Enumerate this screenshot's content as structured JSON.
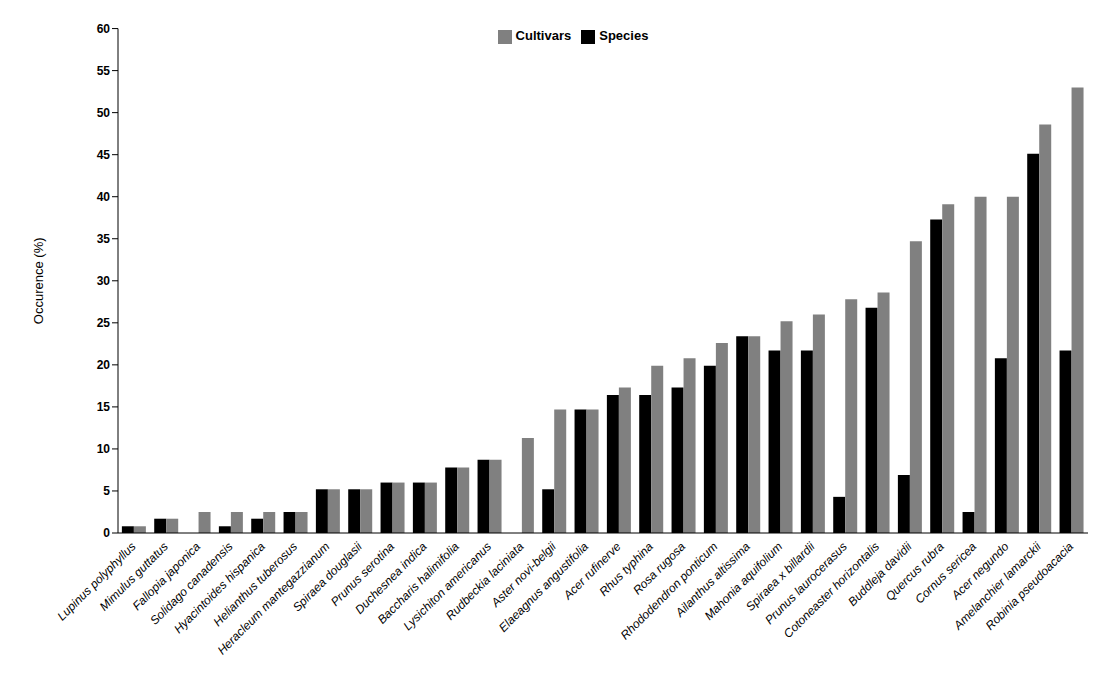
{
  "chart_data": {
    "type": "bar",
    "y_label": "Occurence (%)",
    "categories": [
      "Lupinus polyphyllus",
      "Mimulus guttatus",
      "Fallopia japonica",
      "Solidago canadensis",
      "Hyacintoides hispanica",
      "Helianthus tuberosus",
      "Heracleum mantegazzianum",
      "Spiraea douglasii",
      "Prunus serotina",
      "Duchesnea indica",
      "Baccharis halimifolia",
      "Lysichiton americanus",
      "Rudbeckia laciniata",
      "Aster novi-belgii",
      "Elaeagnus angustifolia",
      "Acer rufinerve",
      "Rhus typhina",
      "Rosa rugosa",
      "Rhododendron ponticum",
      "Ailanthus altissima",
      "Mahonia aquifolium",
      "Spiraea x billardii",
      "Prunus laurocerasus",
      "Cotoneaster horizontalis",
      "Buddleja davidii",
      "Quercus rubra",
      "Cornus sericea",
      "Acer negundo",
      "Amelanchier lamarckii",
      "Robinia pseudoacacia"
    ],
    "series": [
      {
        "name": "Species",
        "color": "#000000",
        "values": [
          0.8,
          1.7,
          0,
          0.8,
          1.7,
          2.5,
          5.2,
          5.2,
          6.0,
          6.0,
          7.8,
          8.7,
          0,
          5.2,
          14.7,
          16.4,
          16.4,
          17.3,
          19.9,
          23.4,
          21.7,
          21.7,
          4.3,
          26.8,
          6.9,
          37.3,
          2.5,
          20.8,
          45.1,
          21.7
        ]
      },
      {
        "name": "Cultivars",
        "color": "#808080",
        "values": [
          0.8,
          1.7,
          2.5,
          2.5,
          2.5,
          2.5,
          5.2,
          5.2,
          6.0,
          6.0,
          7.8,
          8.7,
          11.3,
          14.7,
          14.7,
          17.3,
          19.9,
          20.8,
          22.6,
          23.4,
          25.2,
          26.0,
          27.8,
          28.6,
          34.7,
          39.1,
          40.0,
          40.0,
          48.6,
          53.0
        ]
      }
    ],
    "ylim": [
      0,
      60
    ],
    "yticks": [
      0,
      5,
      10,
      15,
      20,
      25,
      30,
      35,
      40,
      45,
      50,
      55,
      60
    ],
    "grid": false,
    "legend": "top"
  }
}
